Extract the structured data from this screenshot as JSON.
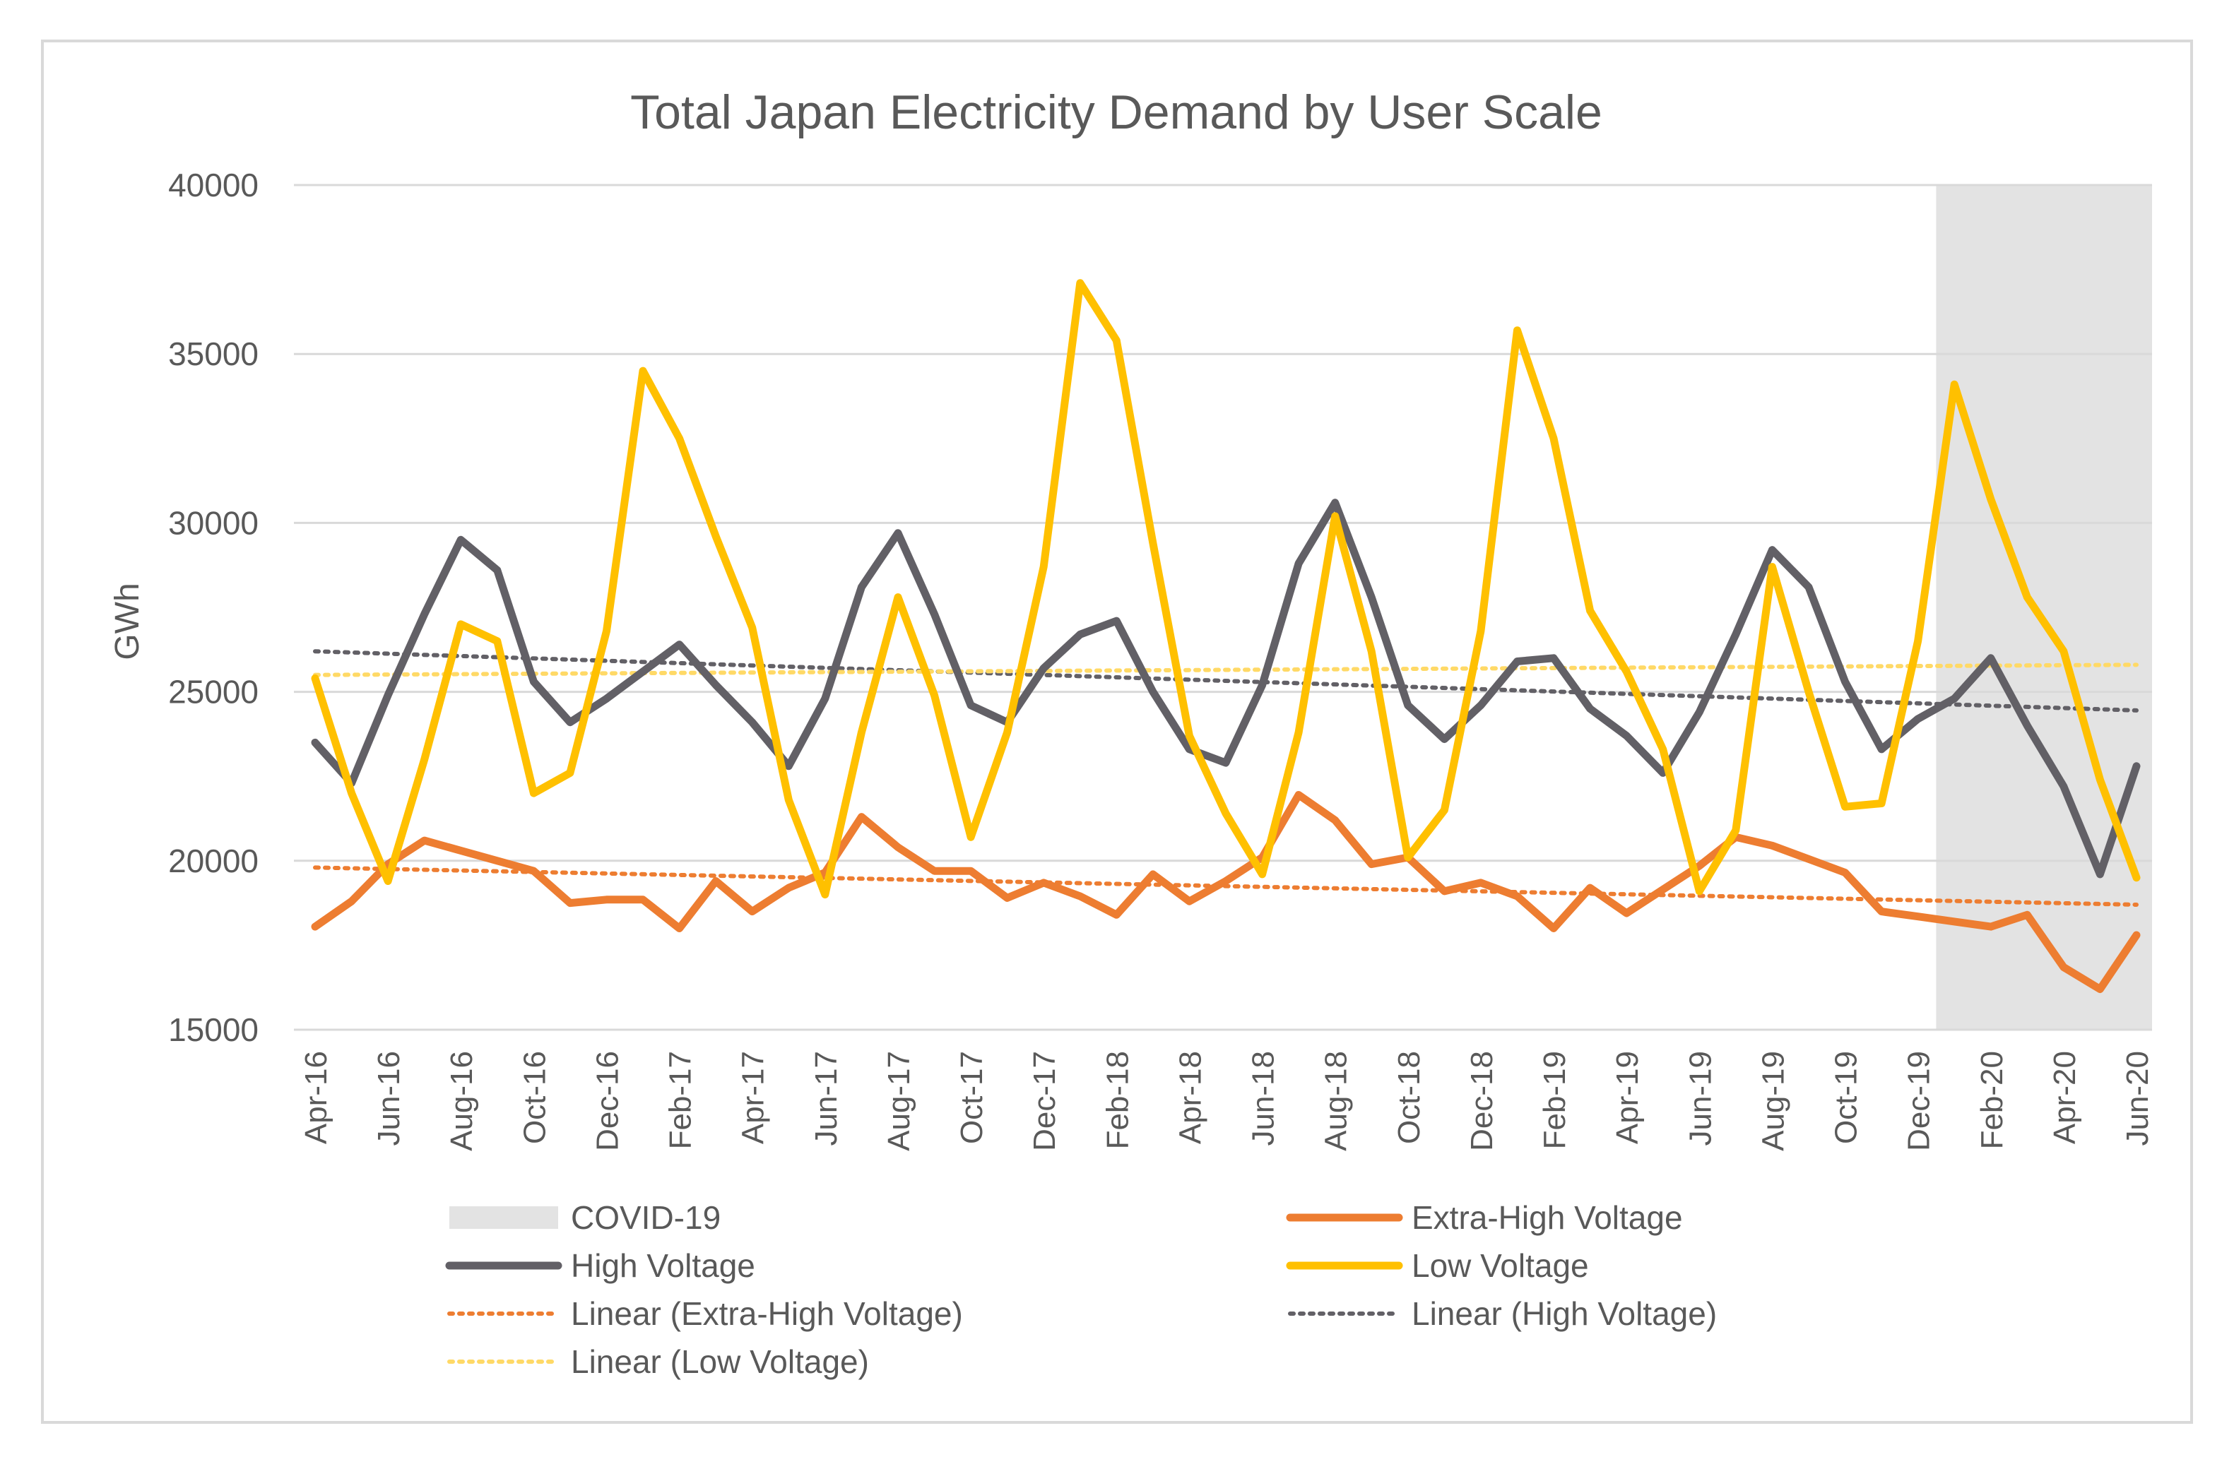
{
  "chart_data": {
    "type": "line",
    "title": "Total Japan Electricity Demand by User Scale",
    "ylabel": "GWh",
    "xlabel": "",
    "ylim": [
      15000,
      40000
    ],
    "y_ticks": [
      "40000",
      "35000",
      "30000",
      "25000",
      "20000",
      "15000"
    ],
    "y_tick_values": [
      40000,
      35000,
      30000,
      25000,
      20000,
      15000
    ],
    "grid": true,
    "legend_position": "bottom",
    "x": [
      "Apr-16",
      "May-16",
      "Jun-16",
      "Jul-16",
      "Aug-16",
      "Sep-16",
      "Oct-16",
      "Nov-16",
      "Dec-16",
      "Jan-17",
      "Feb-17",
      "Mar-17",
      "Apr-17",
      "May-17",
      "Jun-17",
      "Jul-17",
      "Aug-17",
      "Sep-17",
      "Oct-17",
      "Nov-17",
      "Dec-17",
      "Jan-18",
      "Feb-18",
      "Mar-18",
      "Apr-18",
      "May-18",
      "Jun-18",
      "Jul-18",
      "Aug-18",
      "Sep-18",
      "Oct-18",
      "Nov-18",
      "Dec-18",
      "Jan-19",
      "Feb-19",
      "Mar-19",
      "Apr-19",
      "May-19",
      "Jun-19",
      "Jul-19",
      "Aug-19",
      "Sep-19",
      "Oct-19",
      "Nov-19",
      "Dec-19",
      "Jan-20",
      "Feb-20",
      "Mar-20",
      "Apr-20",
      "May-20",
      "Jun-20"
    ],
    "x_tick_labels": [
      "Apr-16",
      "Jun-16",
      "Aug-16",
      "Oct-16",
      "Dec-16",
      "Feb-17",
      "Apr-17",
      "Jun-17",
      "Aug-17",
      "Oct-17",
      "Dec-17",
      "Feb-18",
      "Apr-18",
      "Jun-18",
      "Aug-18",
      "Oct-18",
      "Dec-18",
      "Feb-19",
      "Apr-19",
      "Jun-19",
      "Aug-19",
      "Oct-19",
      "Dec-19",
      "Feb-20",
      "Apr-20",
      "Jun-20"
    ],
    "shaded_region": {
      "name": "COVID-19",
      "from": "Jan-20",
      "to": "Jun-20",
      "color": "#e3e3e3"
    },
    "series": [
      {
        "name": "Extra-High Voltage",
        "color": "#ed7d31",
        "style": "solid",
        "values": [
          18050,
          18800,
          19900,
          20600,
          20300,
          20000,
          19700,
          18750,
          18850,
          18850,
          18000,
          19400,
          18500,
          19200,
          19650,
          21300,
          20400,
          19700,
          19700,
          18900,
          19350,
          18950,
          18400,
          19600,
          18800,
          19400,
          20100,
          21950,
          21200,
          19900,
          20100,
          19100,
          19350,
          18950,
          18000,
          19200,
          18450,
          19150,
          19850,
          20700,
          20450,
          20050,
          19650,
          18500,
          18350,
          18200,
          18050,
          18400,
          16850,
          16200,
          17800
        ]
      },
      {
        "name": "High Voltage",
        "color": "#626066",
        "style": "solid",
        "values": [
          23500,
          22300,
          24900,
          27300,
          29500,
          28600,
          25300,
          24100,
          24800,
          25600,
          26400,
          25200,
          24100,
          22800,
          24800,
          28100,
          29700,
          27300,
          24600,
          24100,
          25700,
          26700,
          27100,
          25000,
          23300,
          22900,
          25200,
          28800,
          30600,
          27800,
          24600,
          23600,
          24600,
          25900,
          26000,
          24500,
          23700,
          22600,
          24400,
          26700,
          29200,
          28100,
          25300,
          23300,
          24200,
          24800,
          26000,
          24000,
          22200,
          19600,
          22800
        ]
      },
      {
        "name": "Low Voltage",
        "color": "#ffc000",
        "style": "solid",
        "values": [
          25400,
          22000,
          19400,
          23000,
          27000,
          26500,
          22000,
          22600,
          26800,
          34500,
          32500,
          29600,
          26900,
          21800,
          19000,
          23800,
          27800,
          24900,
          20700,
          23800,
          28700,
          37100,
          35400,
          29400,
          23700,
          21400,
          19600,
          23800,
          30200,
          26200,
          20100,
          21500,
          26800,
          35700,
          32500,
          27400,
          25600,
          23300,
          19100,
          20900,
          28700,
          25000,
          21600,
          21700,
          26500,
          34100,
          30700,
          27800,
          26200,
          22400,
          19500
        ]
      },
      {
        "name": "Linear (Extra-High Voltage)",
        "color": "#ed7d31",
        "style": "dotted",
        "start": 19800,
        "end": 18700
      },
      {
        "name": "Linear (High Voltage)",
        "color": "#626066",
        "style": "dotted",
        "start": 26200,
        "end": 24450
      },
      {
        "name": "Linear (Low Voltage)",
        "color": "#ffd966",
        "style": "dotted",
        "start": 25500,
        "end": 25800
      }
    ],
    "legend": [
      {
        "label": "COVID-19",
        "kind": "area",
        "color": "#e3e3e3"
      },
      {
        "label": "Extra-High Voltage",
        "kind": "line",
        "color": "#ed7d31"
      },
      {
        "label": "High Voltage",
        "kind": "line",
        "color": "#626066"
      },
      {
        "label": "Low Voltage",
        "kind": "line",
        "color": "#ffc000"
      },
      {
        "label": "Linear (Extra-High Voltage)",
        "kind": "dotted",
        "color": "#ed7d31"
      },
      {
        "label": "Linear (High Voltage)",
        "kind": "dotted",
        "color": "#626066"
      },
      {
        "label": "Linear (Low Voltage)",
        "kind": "dotted",
        "color": "#ffd966"
      }
    ],
    "gridline_color": "#d9d9d9"
  }
}
